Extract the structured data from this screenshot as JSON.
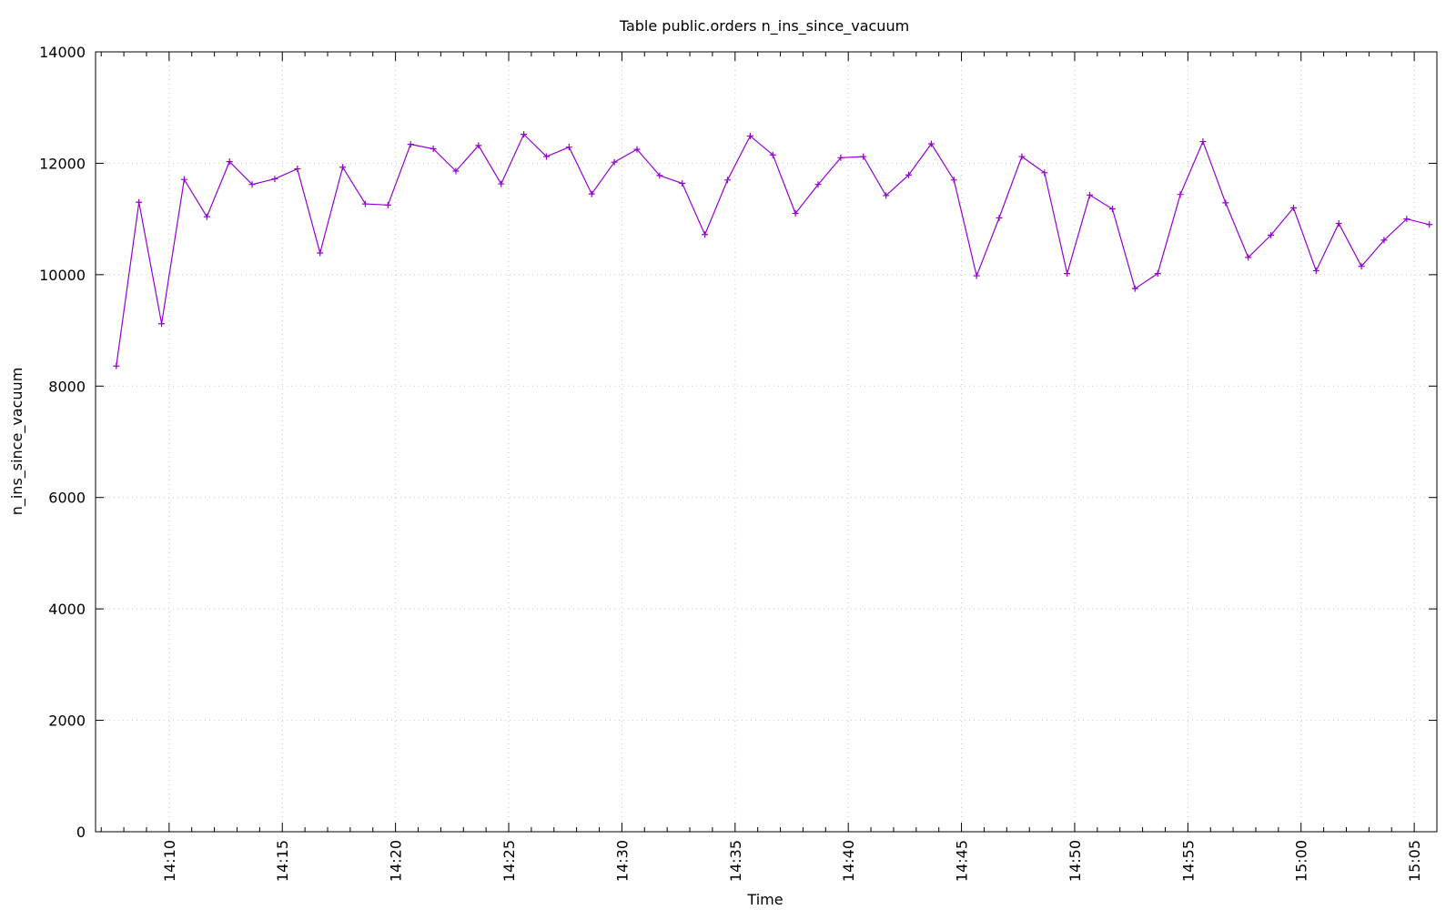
{
  "chart_data": {
    "type": "line",
    "title": "Table public.orders n_ins_since_vacuum",
    "xlabel": "Time",
    "ylabel": "n_ins_since_vacuum",
    "ylim": [
      0,
      14000
    ],
    "yticks": [
      "0",
      "2000",
      "4000",
      "6000",
      "8000",
      "10000",
      "12000",
      "14000"
    ],
    "xlim": [
      "14:06:45",
      "15:06:00"
    ],
    "xticks": [
      "14:10",
      "14:15",
      "14:20",
      "14:25",
      "14:30",
      "14:35",
      "14:40",
      "14:45",
      "14:50",
      "14:55",
      "15:00",
      "15:05"
    ],
    "grid": true,
    "series": [
      {
        "color": "#9400d3",
        "marker": "plus",
        "x": [
          "14:07:40",
          "14:08:40",
          "14:09:40",
          "14:10:40",
          "14:11:40",
          "14:12:40",
          "14:13:40",
          "14:14:40",
          "14:15:40",
          "14:16:40",
          "14:17:40",
          "14:18:40",
          "14:19:40",
          "14:20:40",
          "14:21:40",
          "14:22:40",
          "14:23:40",
          "14:24:40",
          "14:25:40",
          "14:26:40",
          "14:27:40",
          "14:28:40",
          "14:29:40",
          "14:30:40",
          "14:31:40",
          "14:32:40",
          "14:33:40",
          "14:34:40",
          "14:35:40",
          "14:36:40",
          "14:37:40",
          "14:38:40",
          "14:39:40",
          "14:40:40",
          "14:41:40",
          "14:42:40",
          "14:43:40",
          "14:44:40",
          "14:45:40",
          "14:46:40",
          "14:47:40",
          "14:48:40",
          "14:49:40",
          "14:50:40",
          "14:51:40",
          "14:52:40",
          "14:53:40",
          "14:54:40",
          "14:55:40",
          "14:56:40",
          "14:57:40",
          "14:58:40",
          "14:59:40",
          "15:00:40",
          "15:01:40",
          "15:02:40",
          "15:03:40",
          "15:04:40",
          "15:05:40"
        ],
        "y": [
          8360,
          11300,
          9120,
          11710,
          11040,
          12030,
          11620,
          11720,
          11900,
          10390,
          11930,
          11270,
          11250,
          12340,
          12260,
          11860,
          12320,
          11630,
          12520,
          12120,
          12290,
          11450,
          12020,
          12250,
          11780,
          11640,
          10720,
          11700,
          12490,
          12150,
          11100,
          11620,
          12100,
          12120,
          11420,
          11790,
          12350,
          11700,
          9980,
          11020,
          12120,
          11830,
          10020,
          11430,
          11180,
          9750,
          10020,
          11440,
          12390,
          11290,
          10310,
          10710,
          11200,
          10070,
          10920,
          10150,
          10620,
          11000,
          10900
        ]
      }
    ]
  }
}
